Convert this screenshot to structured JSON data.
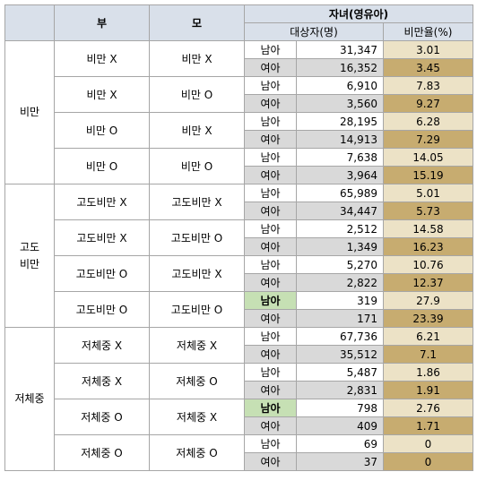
{
  "header": {
    "father": "부",
    "mother": "모",
    "child": "자녀(영유아)",
    "subjects": "대상자(명)",
    "rate": "비만율(%)"
  },
  "groups": [
    {
      "label": "비만",
      "pairs": [
        {
          "father": "비만 X",
          "mother": "비만 X",
          "rows": [
            {
              "sex": "남아",
              "n": "31,347",
              "rate": "3.01"
            },
            {
              "sex": "여아",
              "n": "16,352",
              "rate": "3.45"
            }
          ]
        },
        {
          "father": "비만 X",
          "mother": "비만 O",
          "rows": [
            {
              "sex": "남아",
              "n": "6,910",
              "rate": "7.83"
            },
            {
              "sex": "여아",
              "n": "3,560",
              "rate": "9.27"
            }
          ]
        },
        {
          "father": "비만 O",
          "mother": "비만 X",
          "rows": [
            {
              "sex": "남아",
              "n": "28,195",
              "rate": "6.28"
            },
            {
              "sex": "여아",
              "n": "14,913",
              "rate": "7.29"
            }
          ]
        },
        {
          "father": "비만 O",
          "mother": "비만 O",
          "rows": [
            {
              "sex": "남아",
              "n": "7,638",
              "rate": "14.05"
            },
            {
              "sex": "여아",
              "n": "3,964",
              "rate": "15.19"
            }
          ]
        }
      ]
    },
    {
      "label": "고도\n비만",
      "pairs": [
        {
          "father": "고도비만 X",
          "mother": "고도비만 X",
          "rows": [
            {
              "sex": "남아",
              "n": "65,989",
              "rate": "5.01"
            },
            {
              "sex": "여아",
              "n": "34,447",
              "rate": "5.73"
            }
          ]
        },
        {
          "father": "고도비만 X",
          "mother": "고도비만 O",
          "rows": [
            {
              "sex": "남아",
              "n": "2,512",
              "rate": "14.58"
            },
            {
              "sex": "여아",
              "n": "1,349",
              "rate": "16.23"
            }
          ]
        },
        {
          "father": "고도비만 O",
          "mother": "고도비만 X",
          "rows": [
            {
              "sex": "남아",
              "n": "5,270",
              "rate": "10.76"
            },
            {
              "sex": "여아",
              "n": "2,822",
              "rate": "12.37"
            }
          ]
        },
        {
          "father": "고도비만 O",
          "mother": "고도비만 O",
          "rows": [
            {
              "sex": "남아",
              "n": "319",
              "rate": "27.9",
              "highlight": true
            },
            {
              "sex": "여아",
              "n": "171",
              "rate": "23.39"
            }
          ]
        }
      ]
    },
    {
      "label": "저체중",
      "pairs": [
        {
          "father": "저체중 X",
          "mother": "저체중 X",
          "rows": [
            {
              "sex": "남아",
              "n": "67,736",
              "rate": "6.21"
            },
            {
              "sex": "여아",
              "n": "35,512",
              "rate": "7.1"
            }
          ]
        },
        {
          "father": "저체중 X",
          "mother": "저체중 O",
          "rows": [
            {
              "sex": "남아",
              "n": "5,487",
              "rate": "1.86"
            },
            {
              "sex": "여아",
              "n": "2,831",
              "rate": "1.91"
            }
          ]
        },
        {
          "father": "저체중 O",
          "mother": "저체중 X",
          "rows": [
            {
              "sex": "남아",
              "n": "798",
              "rate": "2.76",
              "highlight": true
            },
            {
              "sex": "여아",
              "n": "409",
              "rate": "1.71"
            }
          ]
        },
        {
          "father": "저체중 O",
          "mother": "저체중 O",
          "rows": [
            {
              "sex": "남아",
              "n": "69",
              "rate": "0"
            },
            {
              "sex": "여아",
              "n": "37",
              "rate": "0"
            }
          ]
        }
      ]
    }
  ],
  "colors": {
    "header_bg": "#d9e0ea",
    "rate_light": "#ece2c6",
    "rate_dark": "#c7ac70",
    "highlight_green": "#c6e0b4",
    "row_shade": "#d9d9d9"
  }
}
